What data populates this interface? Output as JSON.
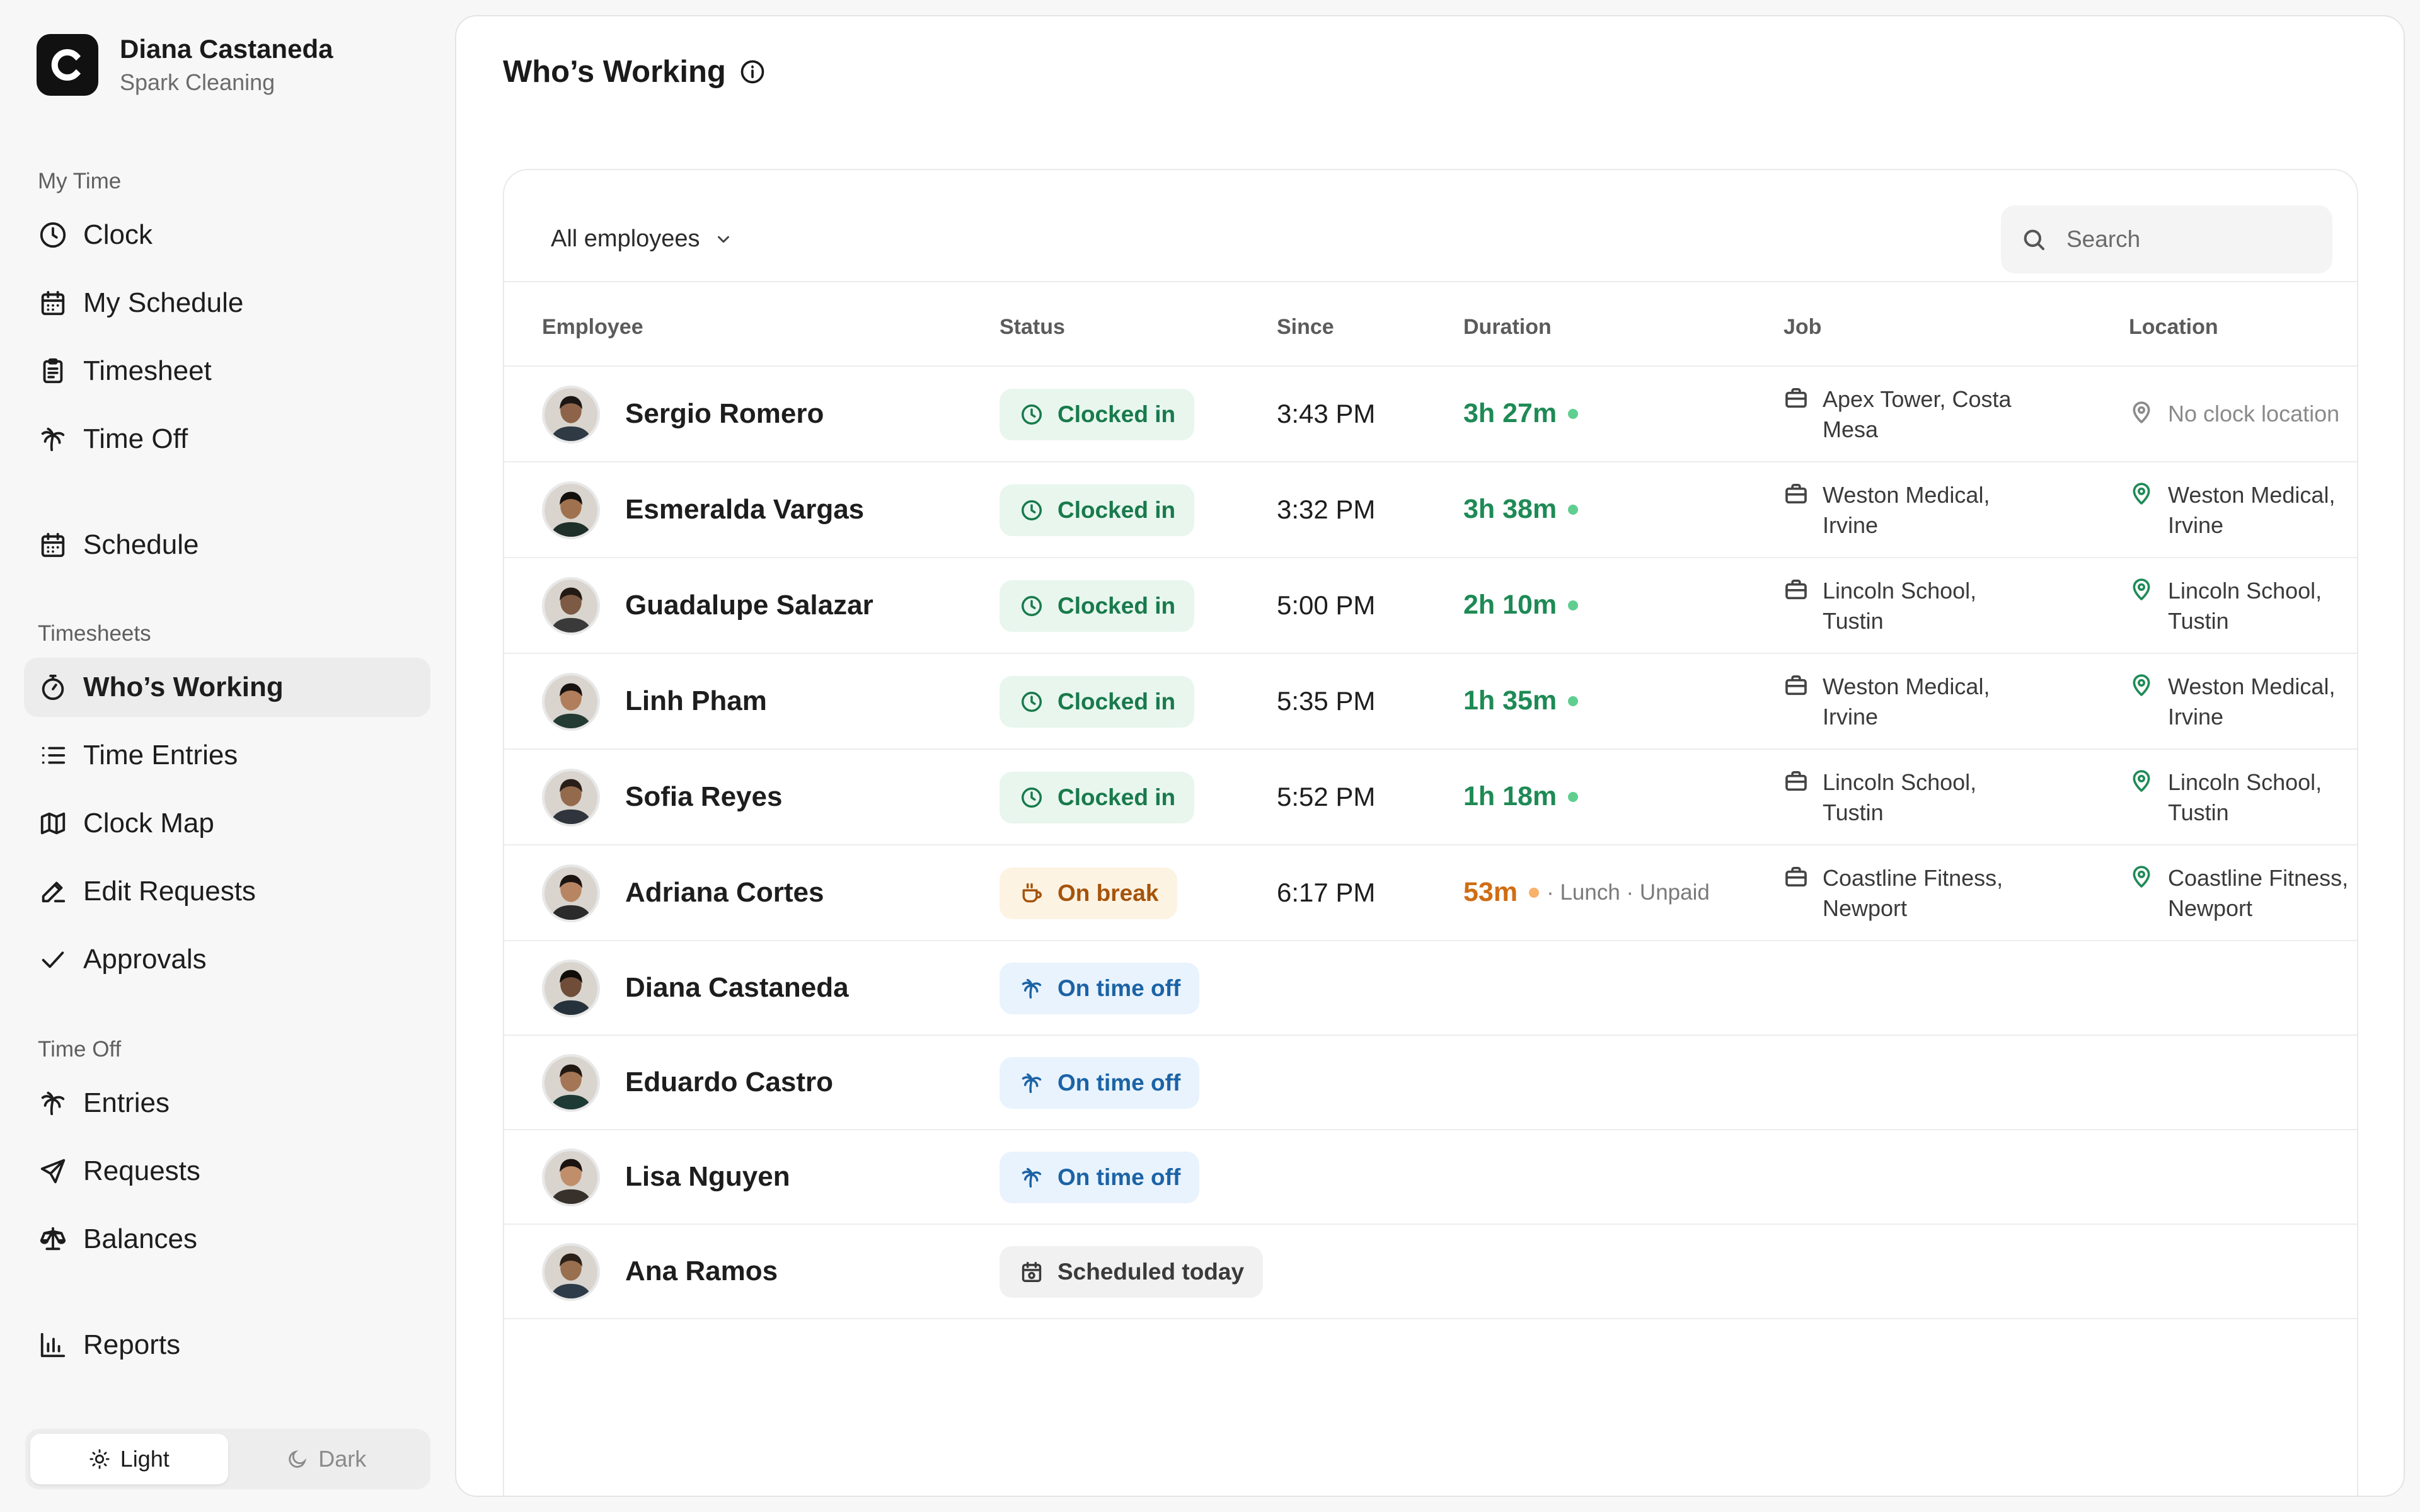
{
  "profile": {
    "name": "Diana Castaneda",
    "org": "Spark Cleaning",
    "logo_letter": "C"
  },
  "sidebar": {
    "sections": {
      "my_time": "My Time",
      "timesheets": "Timesheets",
      "time_off": "Time Off"
    },
    "items": {
      "clock": {
        "label": "Clock",
        "icon": "clock-icon"
      },
      "my_schedule": {
        "label": "My Schedule",
        "icon": "calendar-icon"
      },
      "timesheet": {
        "label": "Timesheet",
        "icon": "clipboard-icon"
      },
      "time_off": {
        "label": "Time Off",
        "icon": "palm-tree-icon"
      },
      "schedule": {
        "label": "Schedule",
        "icon": "calendar-icon"
      },
      "whos_working": {
        "label": "Who’s Working",
        "icon": "stopwatch-icon",
        "active": true
      },
      "time_entries": {
        "label": "Time Entries",
        "icon": "list-icon"
      },
      "clock_map": {
        "label": "Clock Map",
        "icon": "map-icon"
      },
      "edit_requests": {
        "label": "Edit Requests",
        "icon": "pencil-icon"
      },
      "approvals": {
        "label": "Approvals",
        "icon": "check-icon"
      },
      "entries": {
        "label": "Entries",
        "icon": "palm-tree-icon"
      },
      "requests": {
        "label": "Requests",
        "icon": "send-icon"
      },
      "balances": {
        "label": "Balances",
        "icon": "scale-icon"
      },
      "reports": {
        "label": "Reports",
        "icon": "bar-chart-icon"
      }
    },
    "theme": {
      "light": "Light",
      "dark": "Dark",
      "selected": "light"
    }
  },
  "main": {
    "title": "Who’s Working",
    "filter": "All employees",
    "search_placeholder": "Search",
    "columns": {
      "employee": "Employee",
      "status": "Status",
      "since": "Since",
      "duration": "Duration",
      "job": "Job",
      "location": "Location"
    },
    "rows": [
      {
        "name": "Sergio Romero",
        "status": "Clocked in",
        "since": "3:43 PM",
        "duration": "3h 27m",
        "job_1": "Apex Tower, Costa",
        "job_2": "Mesa",
        "loc_1": "No clock location",
        "loc_2": ""
      },
      {
        "name": "Esmeralda Vargas",
        "status": "Clocked in",
        "since": "3:32 PM",
        "duration": "3h 38m",
        "job_1": "Weston Medical,",
        "job_2": "Irvine",
        "loc_1": "Weston Medical,",
        "loc_2": "Irvine"
      },
      {
        "name": "Guadalupe Salazar",
        "status": "Clocked in",
        "since": "5:00 PM",
        "duration": "2h 10m",
        "job_1": "Lincoln School,",
        "job_2": "Tustin",
        "loc_1": "Lincoln School,",
        "loc_2": "Tustin"
      },
      {
        "name": "Linh Pham",
        "status": "Clocked in",
        "since": "5:35 PM",
        "duration": "1h 35m",
        "job_1": "Weston Medical,",
        "job_2": "Irvine",
        "loc_1": "Weston Medical,",
        "loc_2": "Irvine"
      },
      {
        "name": "Sofia Reyes",
        "status": "Clocked in",
        "since": "5:52 PM",
        "duration": "1h 18m",
        "job_1": "Lincoln School,",
        "job_2": "Tustin",
        "loc_1": "Lincoln School,",
        "loc_2": "Tustin"
      },
      {
        "name": "Adriana Cortes",
        "status": "On break",
        "since": "6:17 PM",
        "duration": "53m",
        "duration_note": "· Lunch · Unpaid",
        "job_1": "Coastline Fitness,",
        "job_2": "Newport",
        "loc_1": "Coastline Fitness,",
        "loc_2": "Newport"
      },
      {
        "name": "Diana Castaneda",
        "status": "On time off"
      },
      {
        "name": "Eduardo Castro",
        "status": "On time off"
      },
      {
        "name": "Lisa Nguyen",
        "status": "On time off"
      },
      {
        "name": "Ana Ramos",
        "status": "Scheduled today"
      }
    ]
  },
  "colors": {
    "clocked_in": "#187a4b",
    "on_break": "#a5540b",
    "time_off": "#1b63a6",
    "scheduled": "#3a3a3a",
    "active_nav_bg": "#ececec"
  }
}
